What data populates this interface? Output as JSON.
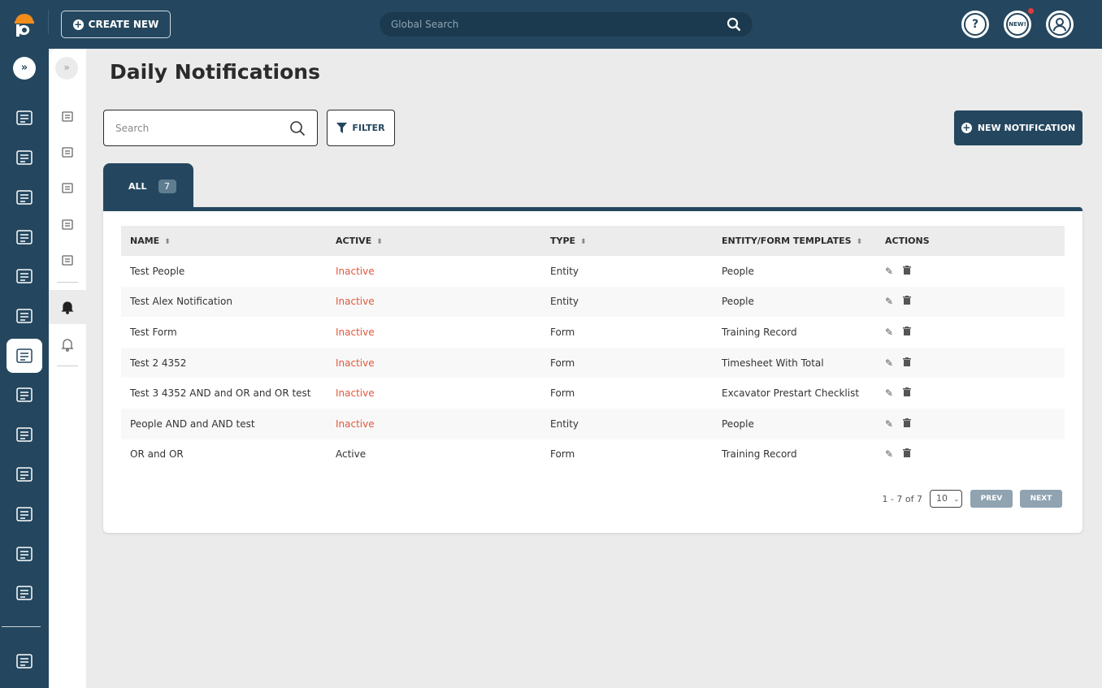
{
  "header": {
    "create_label": "CREATE NEW",
    "search_placeholder": "Global Search",
    "new_badge": "NEW!",
    "help": "?"
  },
  "rail": {
    "items": [
      "buildings",
      "incident",
      "folder",
      "finance",
      "documents",
      "briefcase",
      "training",
      "assets",
      "people",
      "machinery",
      "tools",
      "calendar",
      "checklist",
      "reports"
    ],
    "selected": "training"
  },
  "subnav": {
    "items": [
      "courses",
      "hierarchy",
      "hazards",
      "chemicals",
      "reports",
      "daily-notifications",
      "notifications"
    ],
    "selected": "daily-notifications"
  },
  "page": {
    "title": "Daily Notifications",
    "search_placeholder": "Search",
    "filter_label": "FILTER",
    "new_label": "NEW NOTIFICATION"
  },
  "tabs": [
    {
      "label": "ALL",
      "count": "7"
    }
  ],
  "table": {
    "columns": [
      "NAME",
      "ACTIVE",
      "TYPE",
      "ENTITY/FORM TEMPLATES",
      "ACTIONS"
    ],
    "rows": [
      {
        "name": "Test People",
        "active": "Inactive",
        "type": "Entity",
        "template": "People"
      },
      {
        "name": "Test Alex Notification",
        "active": "Inactive",
        "type": "Entity",
        "template": "People"
      },
      {
        "name": "Test Form",
        "active": "Inactive",
        "type": "Form",
        "template": "Training Record"
      },
      {
        "name": "Test 2 4352",
        "active": "Inactive",
        "type": "Form",
        "template": "Timesheet With Total"
      },
      {
        "name": "Test 3 4352 AND and OR and OR test",
        "active": "Inactive",
        "type": "Form",
        "template": "Excavator Prestart Checklist"
      },
      {
        "name": "People AND and AND test",
        "active": "Inactive",
        "type": "Entity",
        "template": "People"
      },
      {
        "name": "OR and OR",
        "active": "Active",
        "type": "Form",
        "template": "Training Record"
      }
    ]
  },
  "pagination": {
    "range": "1 - 7 of 7",
    "page_size": "10",
    "prev": "PREV",
    "next": "NEXT"
  },
  "colors": {
    "brand": "#24475f",
    "inactive": "#e0573b",
    "accent": "#f28c1b"
  }
}
